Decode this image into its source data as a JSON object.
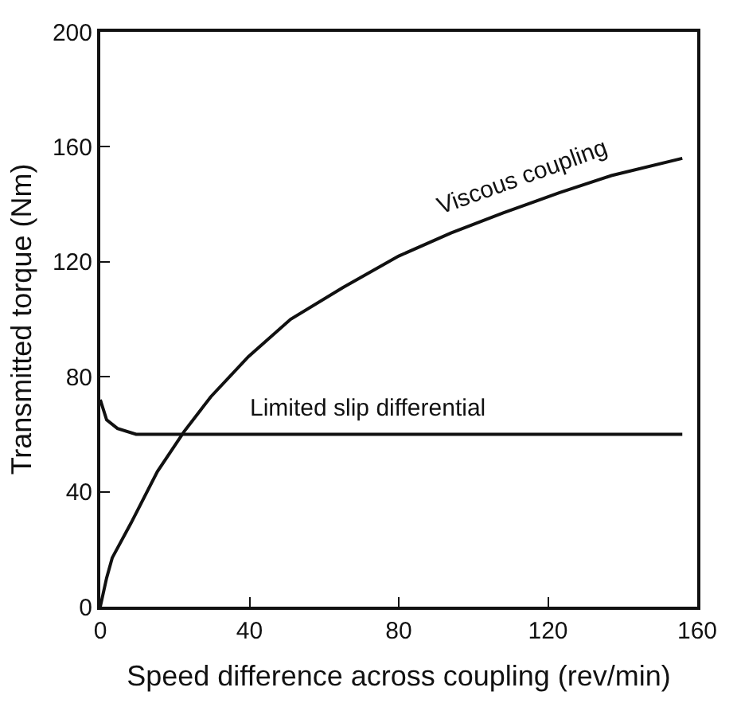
{
  "chart_data": {
    "type": "line",
    "xlabel": "Speed difference across coupling (rev/min)",
    "ylabel": "Transmitted torque (Nm)",
    "xlim": [
      0,
      160
    ],
    "ylim": [
      0,
      200
    ],
    "xticks": [
      0,
      40,
      80,
      120,
      160
    ],
    "yticks": [
      0,
      40,
      80,
      120,
      160,
      200
    ],
    "grid": false,
    "legend": false,
    "marker": "none",
    "line_style": "solid",
    "series": [
      {
        "name": "Viscous coupling",
        "color": "#111111",
        "x": [
          0,
          1.7,
          3.2,
          8.2,
          15.3,
          22.5,
          29.6,
          39.7,
          51,
          65,
          80,
          94,
          108,
          123,
          137,
          156
        ],
        "values": [
          0,
          10,
          17,
          29,
          47,
          61,
          73,
          87,
          100,
          111,
          122,
          130,
          137,
          144,
          150,
          156
        ]
      },
      {
        "name": "Limited slip differential",
        "color": "#111111",
        "x": [
          0,
          1.7,
          4.6,
          9.6,
          20,
          60,
          100,
          156
        ],
        "values": [
          72,
          65,
          62,
          60,
          60,
          60,
          60,
          60
        ]
      }
    ]
  }
}
